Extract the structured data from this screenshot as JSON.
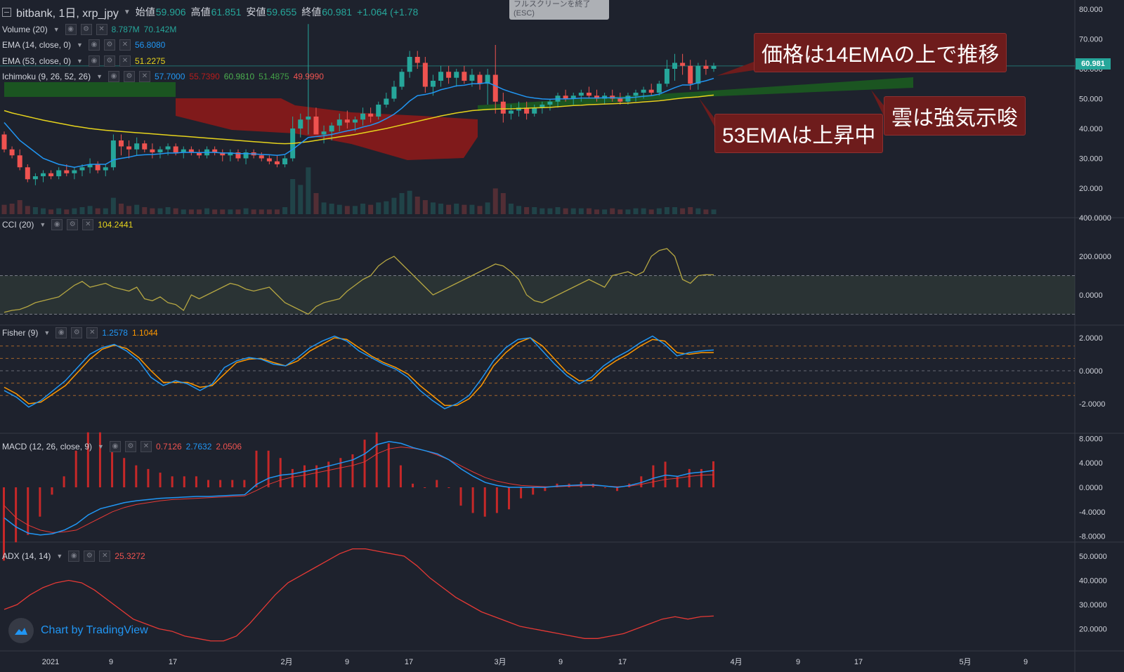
{
  "header": {
    "symbol": "bitbank, 1日, xrp_jpy",
    "open_label": "始値",
    "open": "59.906",
    "high_label": "高値",
    "high": "61.851",
    "low_label": "安値",
    "low": "59.655",
    "close_label": "終値",
    "close": "60.981",
    "change": "+1.064 (+1.78"
  },
  "exit_fullscreen": {
    "line1": "フルスクリーンを終了",
    "line2": "(ESC)"
  },
  "indicators": {
    "volume": {
      "label": "Volume (20)",
      "v1": "8.787M",
      "v2": "70.142M"
    },
    "ema14": {
      "label": "EMA (14, close, 0)",
      "value": "56.8080"
    },
    "ema53": {
      "label": "EMA (53, close, 0)",
      "value": "51.2275"
    },
    "ichimoku": {
      "label": "Ichimoku (9, 26, 52, 26)",
      "v1": "57.7000",
      "v2": "55.7390",
      "v3": "60.9810",
      "v4": "51.4875",
      "v5": "49.9990"
    },
    "cci": {
      "label": "CCI (20)",
      "value": "104.2441"
    },
    "fisher": {
      "label": "Fisher (9)",
      "v1": "1.2578",
      "v2": "1.1044"
    },
    "macd": {
      "label": "MACD (12, 26, close, 9)",
      "v1": "0.7126",
      "v2": "2.7632",
      "v3": "2.0506"
    },
    "adx": {
      "label": "ADX (14, 14)",
      "value": "25.3272"
    }
  },
  "callouts": {
    "c1": "価格は14EMAの上で推移",
    "c2": "雲は強気示唆",
    "c3": "53EMAは上昇中"
  },
  "price_badge": "60.981",
  "axes": {
    "price": [
      "80.000",
      "70.000",
      "60.000",
      "50.000",
      "40.000",
      "30.000",
      "20.000"
    ],
    "cci": [
      "400.0000",
      "200.0000",
      "0.0000"
    ],
    "fisher": [
      "2.0000",
      "0.0000",
      "-2.0000"
    ],
    "macd": [
      "8.0000",
      "4.0000",
      "0.0000",
      "-4.0000",
      "-8.0000"
    ],
    "adx": [
      "50.0000",
      "40.0000",
      "30.0000",
      "20.0000"
    ],
    "time": [
      "2021",
      "9",
      "17",
      "2月",
      "9",
      "17",
      "3月",
      "9",
      "17",
      "4月",
      "9",
      "17",
      "5月",
      "9"
    ]
  },
  "logo_text": "Chart by TradingView",
  "colors": {
    "up": "#26a69a",
    "down": "#ef5350",
    "ema14": "#2196f3",
    "ema53": "#e6d31c",
    "cloud_bull": "#1b5e20",
    "cloud_bear": "#8b1a1a",
    "bg": "#1e222d"
  },
  "chart_data": {
    "type": "candlestick",
    "price_range": [
      10,
      80
    ],
    "candles": [
      [
        38,
        39,
        32,
        33
      ],
      [
        33,
        34,
        30,
        31
      ],
      [
        31,
        33,
        26,
        27
      ],
      [
        27,
        28,
        22,
        23
      ],
      [
        23,
        25,
        21,
        24
      ],
      [
        24,
        26,
        22,
        25
      ],
      [
        25,
        26,
        23,
        24
      ],
      [
        24,
        27,
        23,
        26
      ],
      [
        26,
        28,
        24,
        25
      ],
      [
        25,
        27,
        23,
        26
      ],
      [
        26,
        28,
        24,
        27
      ],
      [
        27,
        30,
        25,
        28
      ],
      [
        28,
        29,
        25,
        26
      ],
      [
        26,
        28,
        24,
        27
      ],
      [
        27,
        38,
        26,
        36
      ],
      [
        36,
        38,
        31,
        34
      ],
      [
        34,
        36,
        30,
        33
      ],
      [
        33,
        37,
        31,
        35
      ],
      [
        35,
        36,
        32,
        33
      ],
      [
        33,
        35,
        30,
        32
      ],
      [
        32,
        34,
        30,
        33
      ],
      [
        33,
        35,
        31,
        34
      ],
      [
        34,
        35,
        31,
        32
      ],
      [
        32,
        34,
        30,
        33
      ],
      [
        33,
        34,
        31,
        32
      ],
      [
        32,
        33,
        30,
        31
      ],
      [
        31,
        34,
        30,
        33
      ],
      [
        33,
        34,
        31,
        32
      ],
      [
        32,
        33,
        29,
        31
      ],
      [
        31,
        33,
        29,
        32
      ],
      [
        32,
        33,
        29,
        30
      ],
      [
        30,
        33,
        28,
        32
      ],
      [
        32,
        33,
        30,
        31
      ],
      [
        31,
        32,
        29,
        30
      ],
      [
        30,
        31,
        28,
        29
      ],
      [
        29,
        31,
        27,
        28
      ],
      [
        28,
        31,
        27,
        30
      ],
      [
        30,
        44,
        29,
        40
      ],
      [
        40,
        45,
        37,
        43
      ],
      [
        43,
        75,
        38,
        44
      ],
      [
        44,
        47,
        38,
        38
      ],
      [
        38,
        41,
        35,
        39
      ],
      [
        39,
        42,
        36,
        41
      ],
      [
        41,
        45,
        39,
        43
      ],
      [
        43,
        46,
        40,
        42
      ],
      [
        42,
        44,
        39,
        43
      ],
      [
        43,
        47,
        41,
        45
      ],
      [
        45,
        47,
        42,
        44
      ],
      [
        44,
        49,
        43,
        48
      ],
      [
        48,
        52,
        47,
        50
      ],
      [
        50,
        56,
        49,
        54
      ],
      [
        54,
        60,
        53,
        59
      ],
      [
        59,
        66,
        57,
        64
      ],
      [
        64,
        66,
        60,
        62
      ],
      [
        62,
        64,
        52,
        54
      ],
      [
        54,
        58,
        51,
        56
      ],
      [
        56,
        61,
        54,
        59
      ],
      [
        59,
        61,
        55,
        57
      ],
      [
        57,
        60,
        54,
        59
      ],
      [
        59,
        61,
        55,
        56
      ],
      [
        56,
        60,
        54,
        58
      ],
      [
        58,
        59,
        53,
        55
      ],
      [
        55,
        60,
        48,
        58
      ],
      [
        58,
        68,
        45,
        49
      ],
      [
        49,
        52,
        42,
        45
      ],
      [
        45,
        48,
        43,
        46
      ],
      [
        46,
        49,
        44,
        47
      ],
      [
        47,
        49,
        43,
        45
      ],
      [
        45,
        48,
        44,
        47
      ],
      [
        47,
        49,
        45,
        48
      ],
      [
        48,
        50,
        46,
        49
      ],
      [
        49,
        52,
        47,
        51
      ],
      [
        51,
        53,
        49,
        50
      ],
      [
        50,
        52,
        48,
        51
      ],
      [
        51,
        53,
        49,
        52
      ],
      [
        52,
        54,
        50,
        51
      ],
      [
        51,
        53,
        49,
        50
      ],
      [
        50,
        52,
        48,
        51
      ],
      [
        51,
        53,
        49,
        50
      ],
      [
        50,
        52,
        48,
        49
      ],
      [
        49,
        52,
        48,
        51
      ],
      [
        51,
        53,
        49,
        52
      ],
      [
        52,
        54,
        50,
        53
      ],
      [
        53,
        55,
        51,
        52
      ],
      [
        52,
        56,
        51,
        55
      ],
      [
        55,
        63,
        54,
        60
      ],
      [
        60,
        65,
        56,
        62
      ],
      [
        62,
        65,
        58,
        61
      ],
      [
        61,
        63,
        53,
        55
      ],
      [
        55,
        62,
        53,
        61
      ],
      [
        61,
        63,
        58,
        60
      ],
      [
        60,
        62,
        59,
        61
      ]
    ],
    "volume": [
      8,
      9,
      12,
      7,
      6,
      5,
      4,
      5,
      4,
      5,
      6,
      7,
      5,
      5,
      14,
      9,
      7,
      8,
      6,
      5,
      5,
      6,
      5,
      4,
      4,
      4,
      5,
      4,
      4,
      4,
      4,
      5,
      4,
      4,
      4,
      4,
      6,
      30,
      25,
      40,
      18,
      10,
      9,
      8,
      7,
      7,
      9,
      8,
      10,
      11,
      14,
      18,
      20,
      15,
      12,
      10,
      9,
      8,
      9,
      8,
      8,
      7,
      10,
      22,
      18,
      9,
      7,
      6,
      6,
      5,
      5,
      6,
      5,
      5,
      5,
      5,
      4,
      4,
      5,
      4,
      4,
      5,
      5,
      4,
      5,
      6,
      6,
      5,
      6,
      5,
      4,
      4
    ],
    "ema14": [
      42,
      39,
      36,
      34,
      32,
      30,
      29,
      28,
      27.5,
      27,
      27.5,
      28,
      28,
      28,
      29.5,
      30,
      30.4,
      31,
      31.2,
      31.3,
      31.5,
      31.8,
      31.8,
      32,
      32,
      31.9,
      32,
      32,
      31.8,
      31.8,
      31.6,
      31.6,
      31.5,
      31.3,
      31.2,
      31,
      31.3,
      33,
      35,
      37,
      37.3,
      37.6,
      38,
      38.6,
      39.2,
      39.7,
      40.5,
      41.1,
      42,
      43.3,
      44.8,
      46.8,
      49.2,
      51,
      51.4,
      52,
      53,
      53.6,
      54.3,
      54.5,
      55,
      55,
      55.4,
      54.3,
      53.1,
      52.2,
      51.4,
      50.6,
      50.2,
      49.9,
      49.8,
      49.9,
      49.9,
      50,
      50.2,
      50.2,
      50.2,
      50.3,
      50.3,
      50.2,
      50.3,
      50.5,
      50.8,
      51,
      51.5,
      52.6,
      53.7,
      54.6,
      54.6,
      55.4,
      56,
      56.8
    ],
    "ema53": [
      46,
      45.2,
      44.6,
      44,
      43.4,
      42.8,
      42.3,
      41.8,
      41.3,
      40.8,
      40.4,
      40,
      39.7,
      39.4,
      39.2,
      39,
      38.8,
      38.6,
      38.4,
      38.2,
      38,
      37.8,
      37.6,
      37.4,
      37.2,
      37,
      36.8,
      36.6,
      36.4,
      36.2,
      36,
      35.8,
      35.6,
      35.4,
      35.2,
      35,
      34.9,
      35,
      35.3,
      35.6,
      36,
      36.4,
      36.8,
      37.2,
      37.6,
      38,
      38.5,
      39,
      39.5,
      40,
      40.6,
      41.2,
      41.8,
      42.4,
      43,
      43.6,
      44.2,
      44.7,
      45.2,
      45.6,
      46,
      46.2,
      46.4,
      46.5,
      46.6,
      46.6,
      46.7,
      46.8,
      46.9,
      47,
      47.1,
      47.3,
      47.5,
      47.7,
      47.8,
      48,
      48.1,
      48.2,
      48.3,
      48.4,
      48.5,
      48.7,
      48.9,
      49.1,
      49.3,
      49.6,
      49.9,
      50.2,
      50.4,
      50.6,
      50.9,
      51.2
    ],
    "cci": [
      -90,
      -80,
      -75,
      -60,
      -40,
      -30,
      -20,
      -10,
      20,
      50,
      70,
      40,
      50,
      60,
      40,
      30,
      20,
      40,
      -20,
      -30,
      -10,
      -40,
      -50,
      -80,
      0,
      -20,
      0,
      20,
      40,
      60,
      50,
      30,
      20,
      30,
      40,
      0,
      -40,
      -60,
      -80,
      -100,
      -60,
      -40,
      -30,
      -20,
      20,
      50,
      80,
      100,
      150,
      180,
      200,
      160,
      120,
      80,
      40,
      0,
      20,
      40,
      60,
      80,
      100,
      120,
      140,
      160,
      150,
      120,
      80,
      0,
      -30,
      -40,
      -20,
      0,
      20,
      40,
      60,
      80,
      60,
      40,
      100,
      110,
      120,
      100,
      120,
      200,
      230,
      240,
      200,
      80,
      60,
      100,
      105,
      104
    ],
    "fisher": [
      -1.2,
      -1.6,
      -2.2,
      -1.8,
      -1.2,
      -0.6,
      0.2,
      1.0,
      1.4,
      1.6,
      1.2,
      0.6,
      -0.4,
      -0.9,
      -0.6,
      -0.8,
      -1.2,
      -0.8,
      0.2,
      0.6,
      0.8,
      0.7,
      0.4,
      0.3,
      0.8,
      1.4,
      1.8,
      2.1,
      1.8,
      1.2,
      0.8,
      0.4,
      0.1,
      -0.4,
      -1.2,
      -1.8,
      -2.3,
      -2.0,
      -1.5,
      -0.5,
      0.6,
      1.4,
      1.9,
      2.0,
      1.2,
      0.4,
      -0.3,
      -0.8,
      -0.4,
      0.3,
      0.8,
      1.2,
      1.7,
      2.1,
      1.6,
      0.9,
      1.1,
      1.2,
      1.26
    ],
    "fisher_signal": [
      -1.0,
      -1.4,
      -2.0,
      -1.9,
      -1.4,
      -0.9,
      -0.1,
      0.7,
      1.3,
      1.55,
      1.35,
      0.8,
      0.0,
      -0.7,
      -0.7,
      -0.7,
      -1.0,
      -0.9,
      -0.2,
      0.5,
      0.7,
      0.75,
      0.5,
      0.3,
      0.6,
      1.2,
      1.6,
      2.0,
      1.9,
      1.4,
      0.9,
      0.5,
      0.2,
      -0.2,
      -0.9,
      -1.5,
      -2.1,
      -2.1,
      -1.7,
      -0.9,
      0.3,
      1.1,
      1.7,
      2.0,
      1.5,
      0.7,
      -0.1,
      -0.6,
      -0.6,
      0.1,
      0.6,
      1.0,
      1.5,
      1.9,
      1.8,
      1.1,
      1.0,
      1.1,
      1.1
    ],
    "macd": [
      -5,
      -6.5,
      -7.5,
      -7.8,
      -7.6,
      -7,
      -6,
      -4.5,
      -3.5,
      -3,
      -2.5,
      -2.2,
      -2,
      -1.8,
      -1.7,
      -1.6,
      -1.5,
      -1.5,
      -1.4,
      -1.3,
      -1.2,
      0.5,
      1.5,
      2.0,
      2.2,
      2.6,
      3.0,
      3.5,
      4.0,
      4.5,
      5.5,
      7,
      7.5,
      7.2,
      6.5,
      6.0,
      5.5,
      4.5,
      3.0,
      1.8,
      0.8,
      0.3,
      0,
      0,
      0,
      0,
      0.2,
      0.3,
      0.4,
      0.4,
      0.2,
      0,
      0.3,
      0.8,
      1.5,
      2.0,
      1.8,
      2.3,
      2.5,
      2.76
    ],
    "macd_signal": [
      -3,
      -5,
      -6.2,
      -7,
      -7.4,
      -7.3,
      -7,
      -6,
      -5,
      -4,
      -3.3,
      -2.8,
      -2.5,
      -2.2,
      -2,
      -1.9,
      -1.8,
      -1.7,
      -1.6,
      -1.5,
      -1.4,
      -0.5,
      0.5,
      1.2,
      1.7,
      2.0,
      2.4,
      2.8,
      3.2,
      3.6,
      4.2,
      5.5,
      6.3,
      6.6,
      6.4,
      6.0,
      5.3,
      4.5,
      3.5,
      2.5,
      1.6,
      1.0,
      0.6,
      0.3,
      0.2,
      0.1,
      0.1,
      0.2,
      0.25,
      0.3,
      0.2,
      0.1,
      0.2,
      0.5,
      0.9,
      1.3,
      1.5,
      1.8,
      2.0,
      2.05
    ],
    "adx": [
      28,
      30,
      34,
      37,
      39,
      40,
      39,
      36,
      32,
      28,
      24,
      22,
      20,
      19,
      17,
      16,
      15,
      15,
      17,
      22,
      28,
      34,
      39,
      42,
      45,
      48,
      51,
      53,
      53,
      52,
      51,
      50,
      46,
      41,
      37,
      33,
      30,
      27,
      25,
      23,
      21,
      20,
      19,
      18,
      17,
      16,
      16,
      17,
      18,
      20,
      22,
      24,
      25,
      24,
      25,
      25.3
    ]
  }
}
